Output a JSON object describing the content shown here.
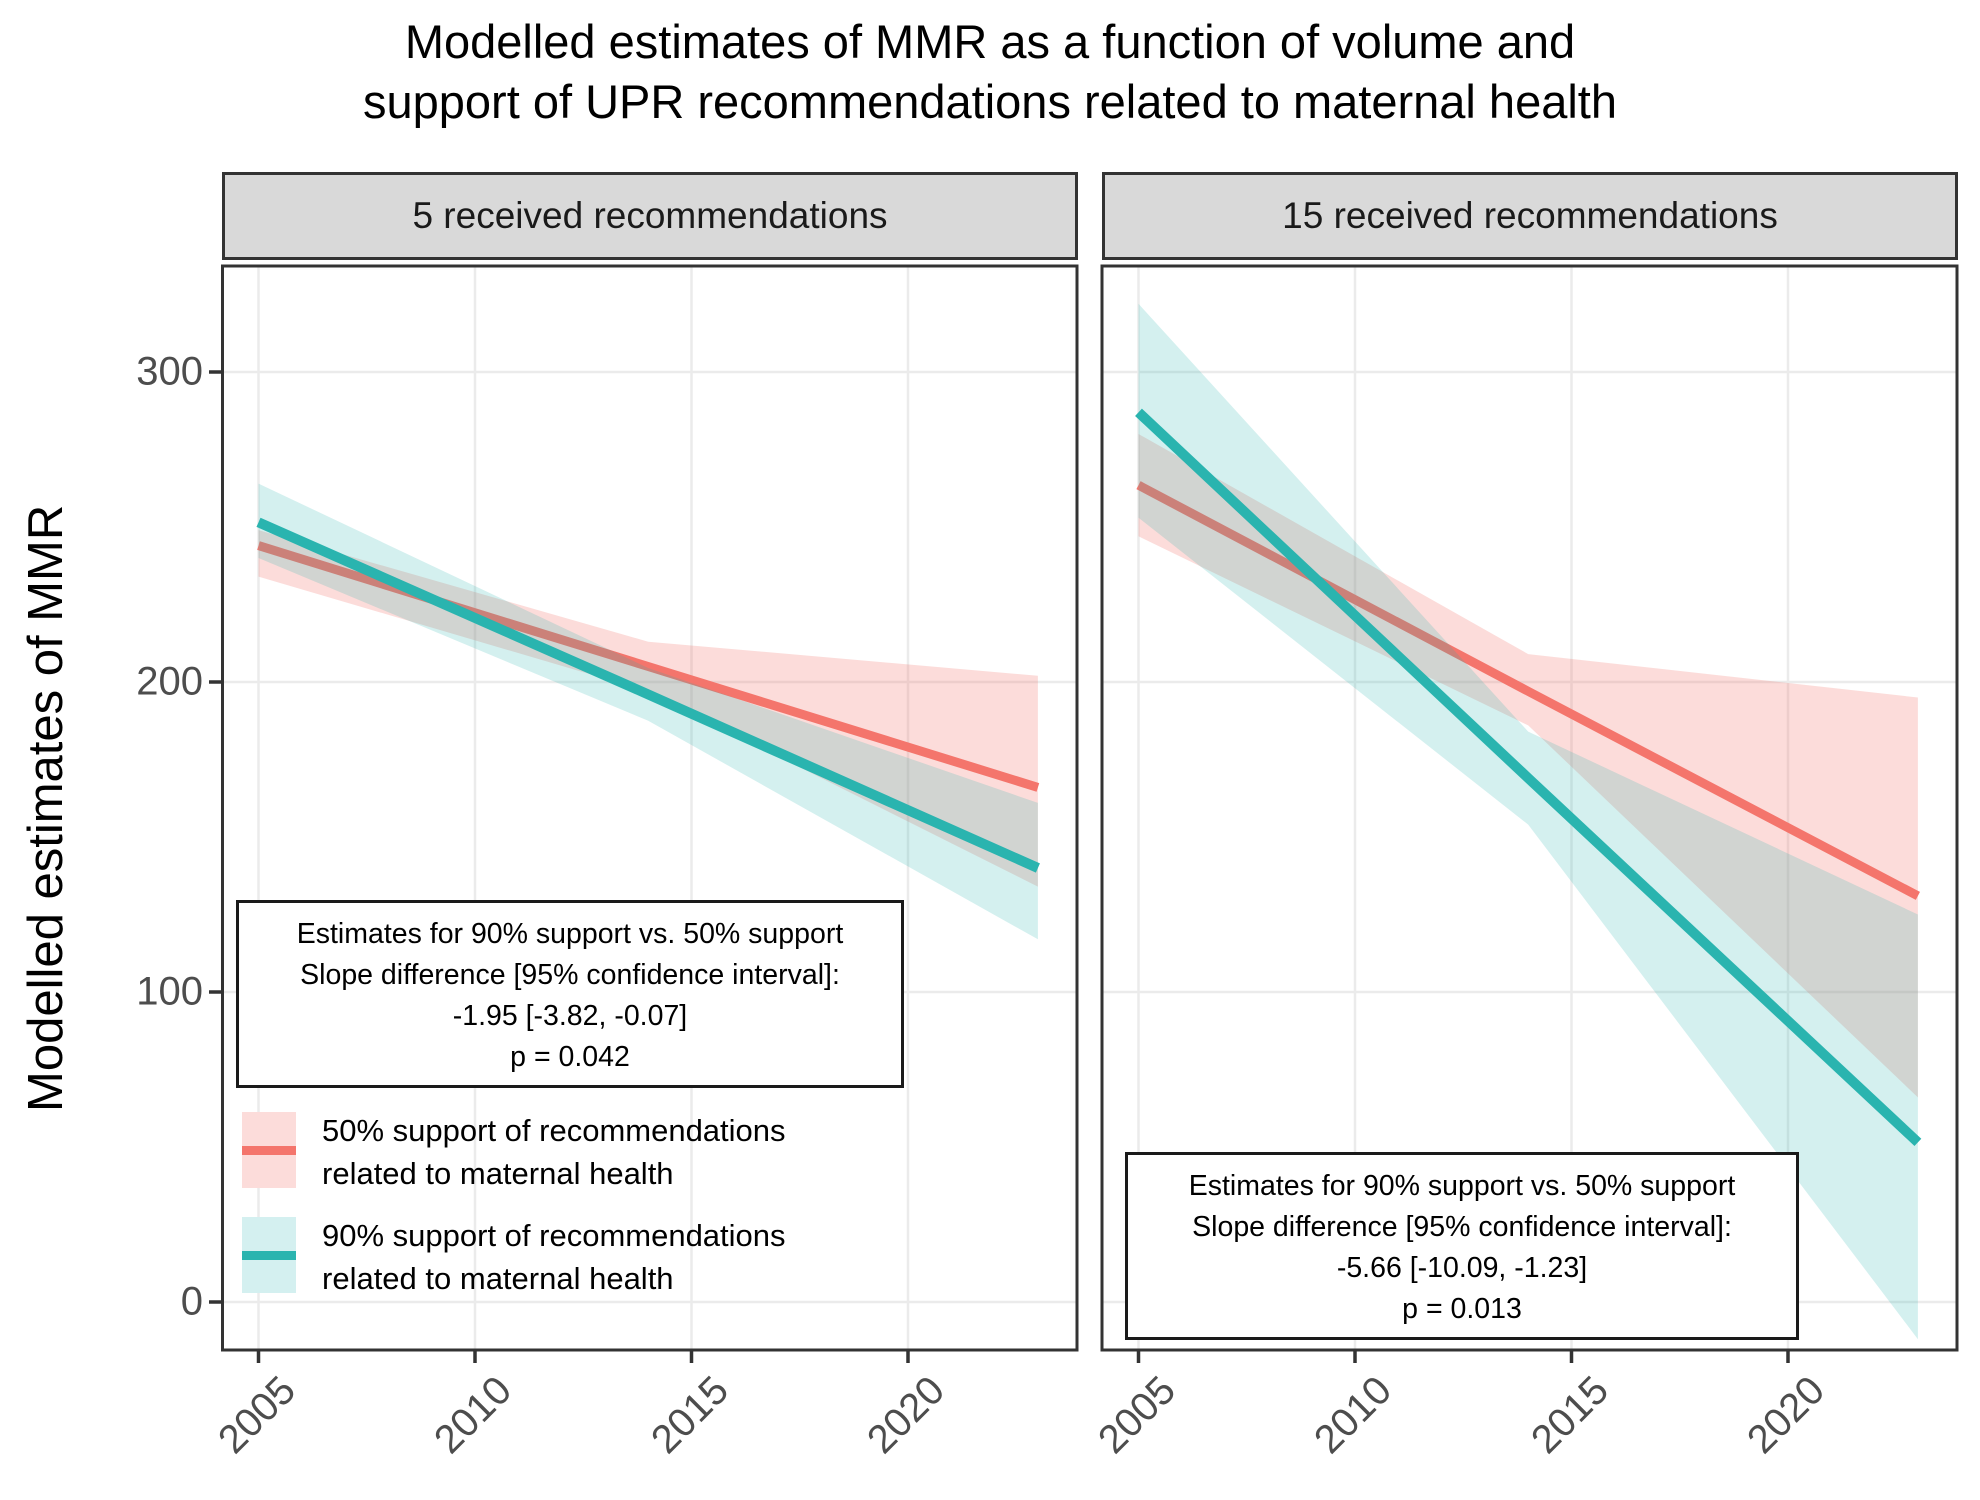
{
  "title": {
    "line1": "Modelled estimates of MMR as a function of volume and",
    "line2": "support of UPR recommendations related to maternal health"
  },
  "y_axis": {
    "title": "Modelled estimates of MMR",
    "ticks": [
      0,
      100,
      200,
      300
    ]
  },
  "x_axis": {
    "ticks": [
      2005,
      2010,
      2015,
      2020
    ]
  },
  "colors": {
    "red_line": "#F4756C",
    "red_ribbon": "rgba(244,117,108,0.25)",
    "teal_line": "#2AB4AF",
    "teal_ribbon": "rgba(42,180,175,0.20)",
    "gridline": "#EBEBEB",
    "panel_border": "#333333",
    "strip_background": "#D9D9D9",
    "tick_text": "#4D4D4D"
  },
  "legend": {
    "items": [
      {
        "label": "50% support of recommendations related to maternal health",
        "series": "50% support"
      },
      {
        "label": "90% support of recommendations related to maternal health",
        "series": "90% support"
      }
    ]
  },
  "chart_data": {
    "type": "line",
    "xlabel": "",
    "ylabel": "Modelled estimates of MMR",
    "x": [
      2005,
      2014,
      2023
    ],
    "xlim": [
      2004.1,
      2023.9
    ],
    "ylim": [
      -15,
      335
    ],
    "x_ticks": [
      2005,
      2010,
      2015,
      2020
    ],
    "y_ticks": [
      0,
      100,
      200,
      300
    ],
    "grid": "major only",
    "panels": [
      {
        "label": "5 received recommendations",
        "series": [
          {
            "name": "50% support",
            "values": [
              244,
              205,
              166
            ],
            "ci_low": [
              234,
              197,
              134
            ],
            "ci_high": [
              249,
              213,
              202
            ]
          },
          {
            "name": "90% support",
            "values": [
              251.5,
              196,
              140
            ],
            "ci_low": [
              240,
              187.5,
              117
            ],
            "ci_high": [
              264,
              204.5,
              161
            ]
          }
        ],
        "annotation": {
          "lines": [
            "Estimates for 90% support vs. 50% support",
            "Slope difference [95% confidence interval]:",
            "-1.95 [-3.82, -0.07]",
            "p = 0.042"
          ]
        }
      },
      {
        "label": "15 received recommendations",
        "series": [
          {
            "name": "50% support",
            "values": [
              263.5,
              197,
              131
            ],
            "ci_low": [
              247,
              186,
              66
            ],
            "ci_high": [
              280,
              209,
              195
            ]
          },
          {
            "name": "90% support",
            "values": [
              287,
              169,
              51.5
            ],
            "ci_low": [
              253,
              154,
              -12
            ],
            "ci_high": [
              322,
              184,
              125
            ]
          }
        ],
        "annotation": {
          "lines": [
            "Estimates for 90% support vs. 50% support",
            "Slope difference [95% confidence interval]:",
            "-5.66 [-10.09, -1.23]",
            "p = 0.013"
          ]
        }
      }
    ]
  }
}
